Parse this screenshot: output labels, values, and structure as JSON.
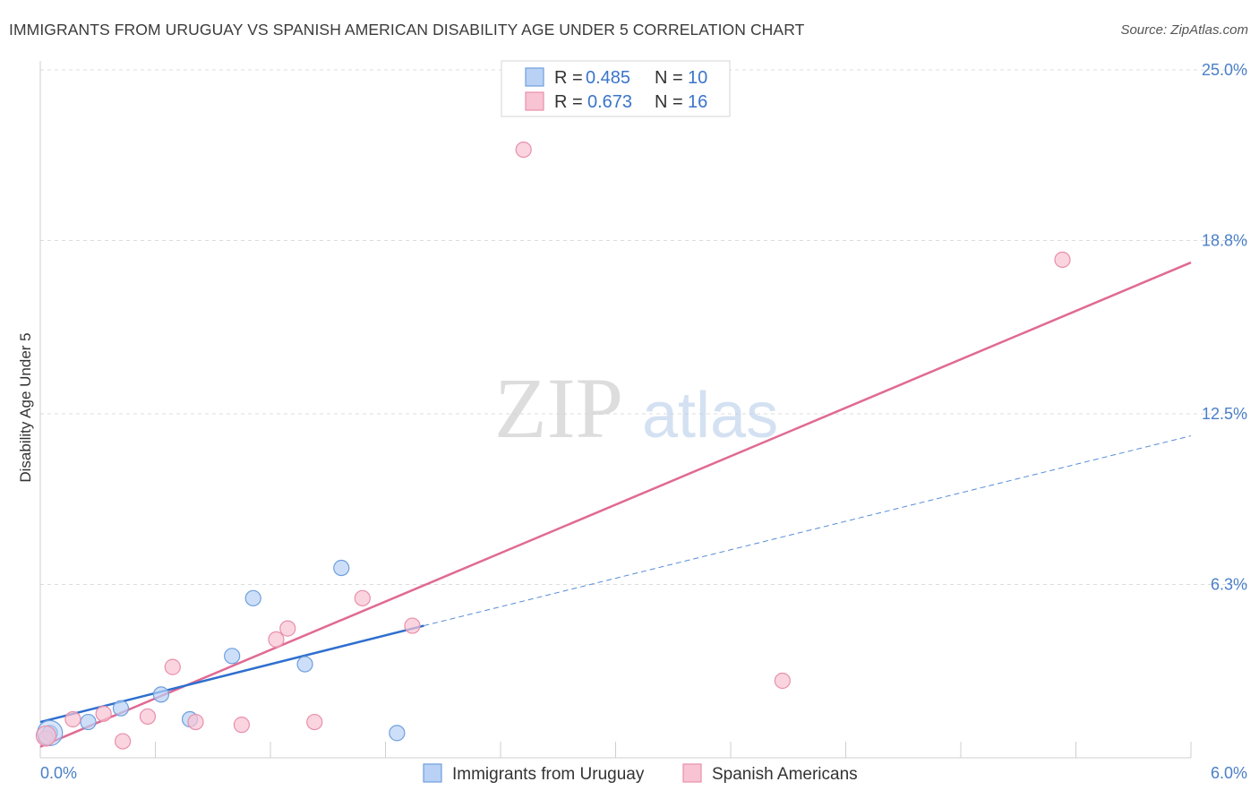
{
  "header": {
    "title": "IMMIGRANTS FROM URUGUAY VS SPANISH AMERICAN DISABILITY AGE UNDER 5 CORRELATION CHART",
    "source": "Source: ZipAtlas.com"
  },
  "watermark": {
    "zip": "ZIP",
    "atlas": "atlas"
  },
  "legend": {
    "rows": [
      {
        "r_label": "R =",
        "r_value": "0.485",
        "n_label": "N =",
        "n_value": "10"
      },
      {
        "r_label": "R =",
        "r_value": "0.673",
        "n_label": "N =",
        "n_value": "16"
      }
    ]
  },
  "colors": {
    "blue_fill": "#b8d1f5",
    "blue_stroke": "#6f9fdd",
    "blue_line": "#2e6fce",
    "pink_fill": "#f8c3d3",
    "pink_stroke": "#e98fab",
    "pink_line": "#e06a93",
    "tick_text": "#4a7fc8",
    "grid": "#dcdcdc"
  },
  "chart_data": {
    "type": "scatter",
    "xlabel": "",
    "ylabel": "Disability Age Under 5",
    "xlim": [
      0,
      6
    ],
    "ylim": [
      0,
      25
    ],
    "x_tick_labels": [
      "0.0%",
      "6.0%"
    ],
    "y_ticks": [
      6.3,
      12.5,
      18.8,
      25.0
    ],
    "y_tick_labels": [
      "6.3%",
      "12.5%",
      "18.8%",
      "25.0%"
    ],
    "grid": true,
    "legend_position": "top-center",
    "series": [
      {
        "name": "Immigrants from Uruguay",
        "color": "blue",
        "points": [
          [
            0.05,
            0.9
          ],
          [
            0.25,
            1.3
          ],
          [
            0.42,
            1.8
          ],
          [
            0.63,
            2.3
          ],
          [
            0.78,
            1.4
          ],
          [
            1.0,
            3.7
          ],
          [
            1.11,
            5.8
          ],
          [
            1.38,
            3.4
          ],
          [
            1.57,
            6.9
          ],
          [
            1.86,
            0.9
          ]
        ],
        "trend": {
          "x0": 0.0,
          "y0": 1.3,
          "x1": 2.0,
          "y1": 4.8,
          "dashed_to_x": 6.0,
          "dashed_to_y": 11.7
        }
      },
      {
        "name": "Spanish Americans",
        "color": "pink",
        "points": [
          [
            0.03,
            0.7
          ],
          [
            0.17,
            1.4
          ],
          [
            0.33,
            1.6
          ],
          [
            0.43,
            0.6
          ],
          [
            0.56,
            1.5
          ],
          [
            0.69,
            3.3
          ],
          [
            0.81,
            1.3
          ],
          [
            1.05,
            1.2
          ],
          [
            1.23,
            4.3
          ],
          [
            1.29,
            4.7
          ],
          [
            1.43,
            1.3
          ],
          [
            1.68,
            5.8
          ],
          [
            1.94,
            4.8
          ],
          [
            2.52,
            22.1
          ],
          [
            3.87,
            2.8
          ],
          [
            5.33,
            18.1
          ]
        ],
        "trend": {
          "x0": 0.0,
          "y0": 0.4,
          "x1": 6.0,
          "y1": 18.0
        }
      }
    ]
  }
}
